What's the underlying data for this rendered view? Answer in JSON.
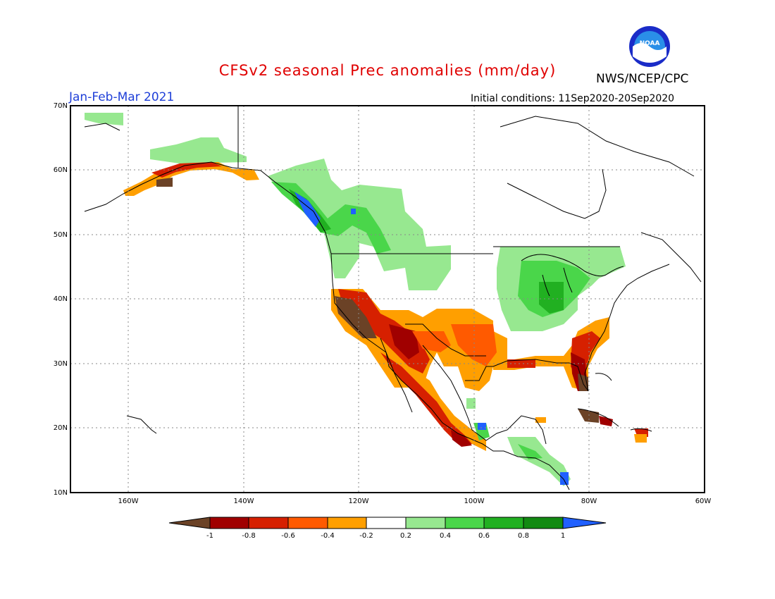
{
  "title": "CFSv2 seasonal Prec anomalies (mm/day)",
  "agency": "NWS/NCEP/CPC",
  "logo_text": "NOAA",
  "period": "Jan-Feb-Mar 2021",
  "initial_conditions": "Initial conditions: 11Sep2020-20Sep2020",
  "lat_labels": [
    "70N",
    "60N",
    "50N",
    "40N",
    "30N",
    "20N",
    "10N"
  ],
  "lon_labels": [
    "160W",
    "140W",
    "120W",
    "100W",
    "80W",
    "60W"
  ],
  "colorbar": {
    "ticks": [
      "-1",
      "-0.8",
      "-0.6",
      "-0.4",
      "-0.2",
      "0.2",
      "0.4",
      "0.6",
      "0.8",
      "1"
    ],
    "colors": [
      "#6b4226",
      "#a00000",
      "#d62000",
      "#ff5a00",
      "#ff9f00",
      "#ffffff",
      "#97e890",
      "#4ad64a",
      "#21b021",
      "#128a12",
      "#2060ff"
    ]
  },
  "colors": {
    "very_dry": "#6b4226",
    "dry_1": "#a00000",
    "dry_2": "#d62000",
    "dry_3": "#ff5a00",
    "dry_4": "#ff9f00",
    "wet_1": "#97e890",
    "wet_2": "#4ad64a",
    "wet_3": "#21b021",
    "wet_4": "#128a12",
    "very_wet": "#2060ff"
  }
}
